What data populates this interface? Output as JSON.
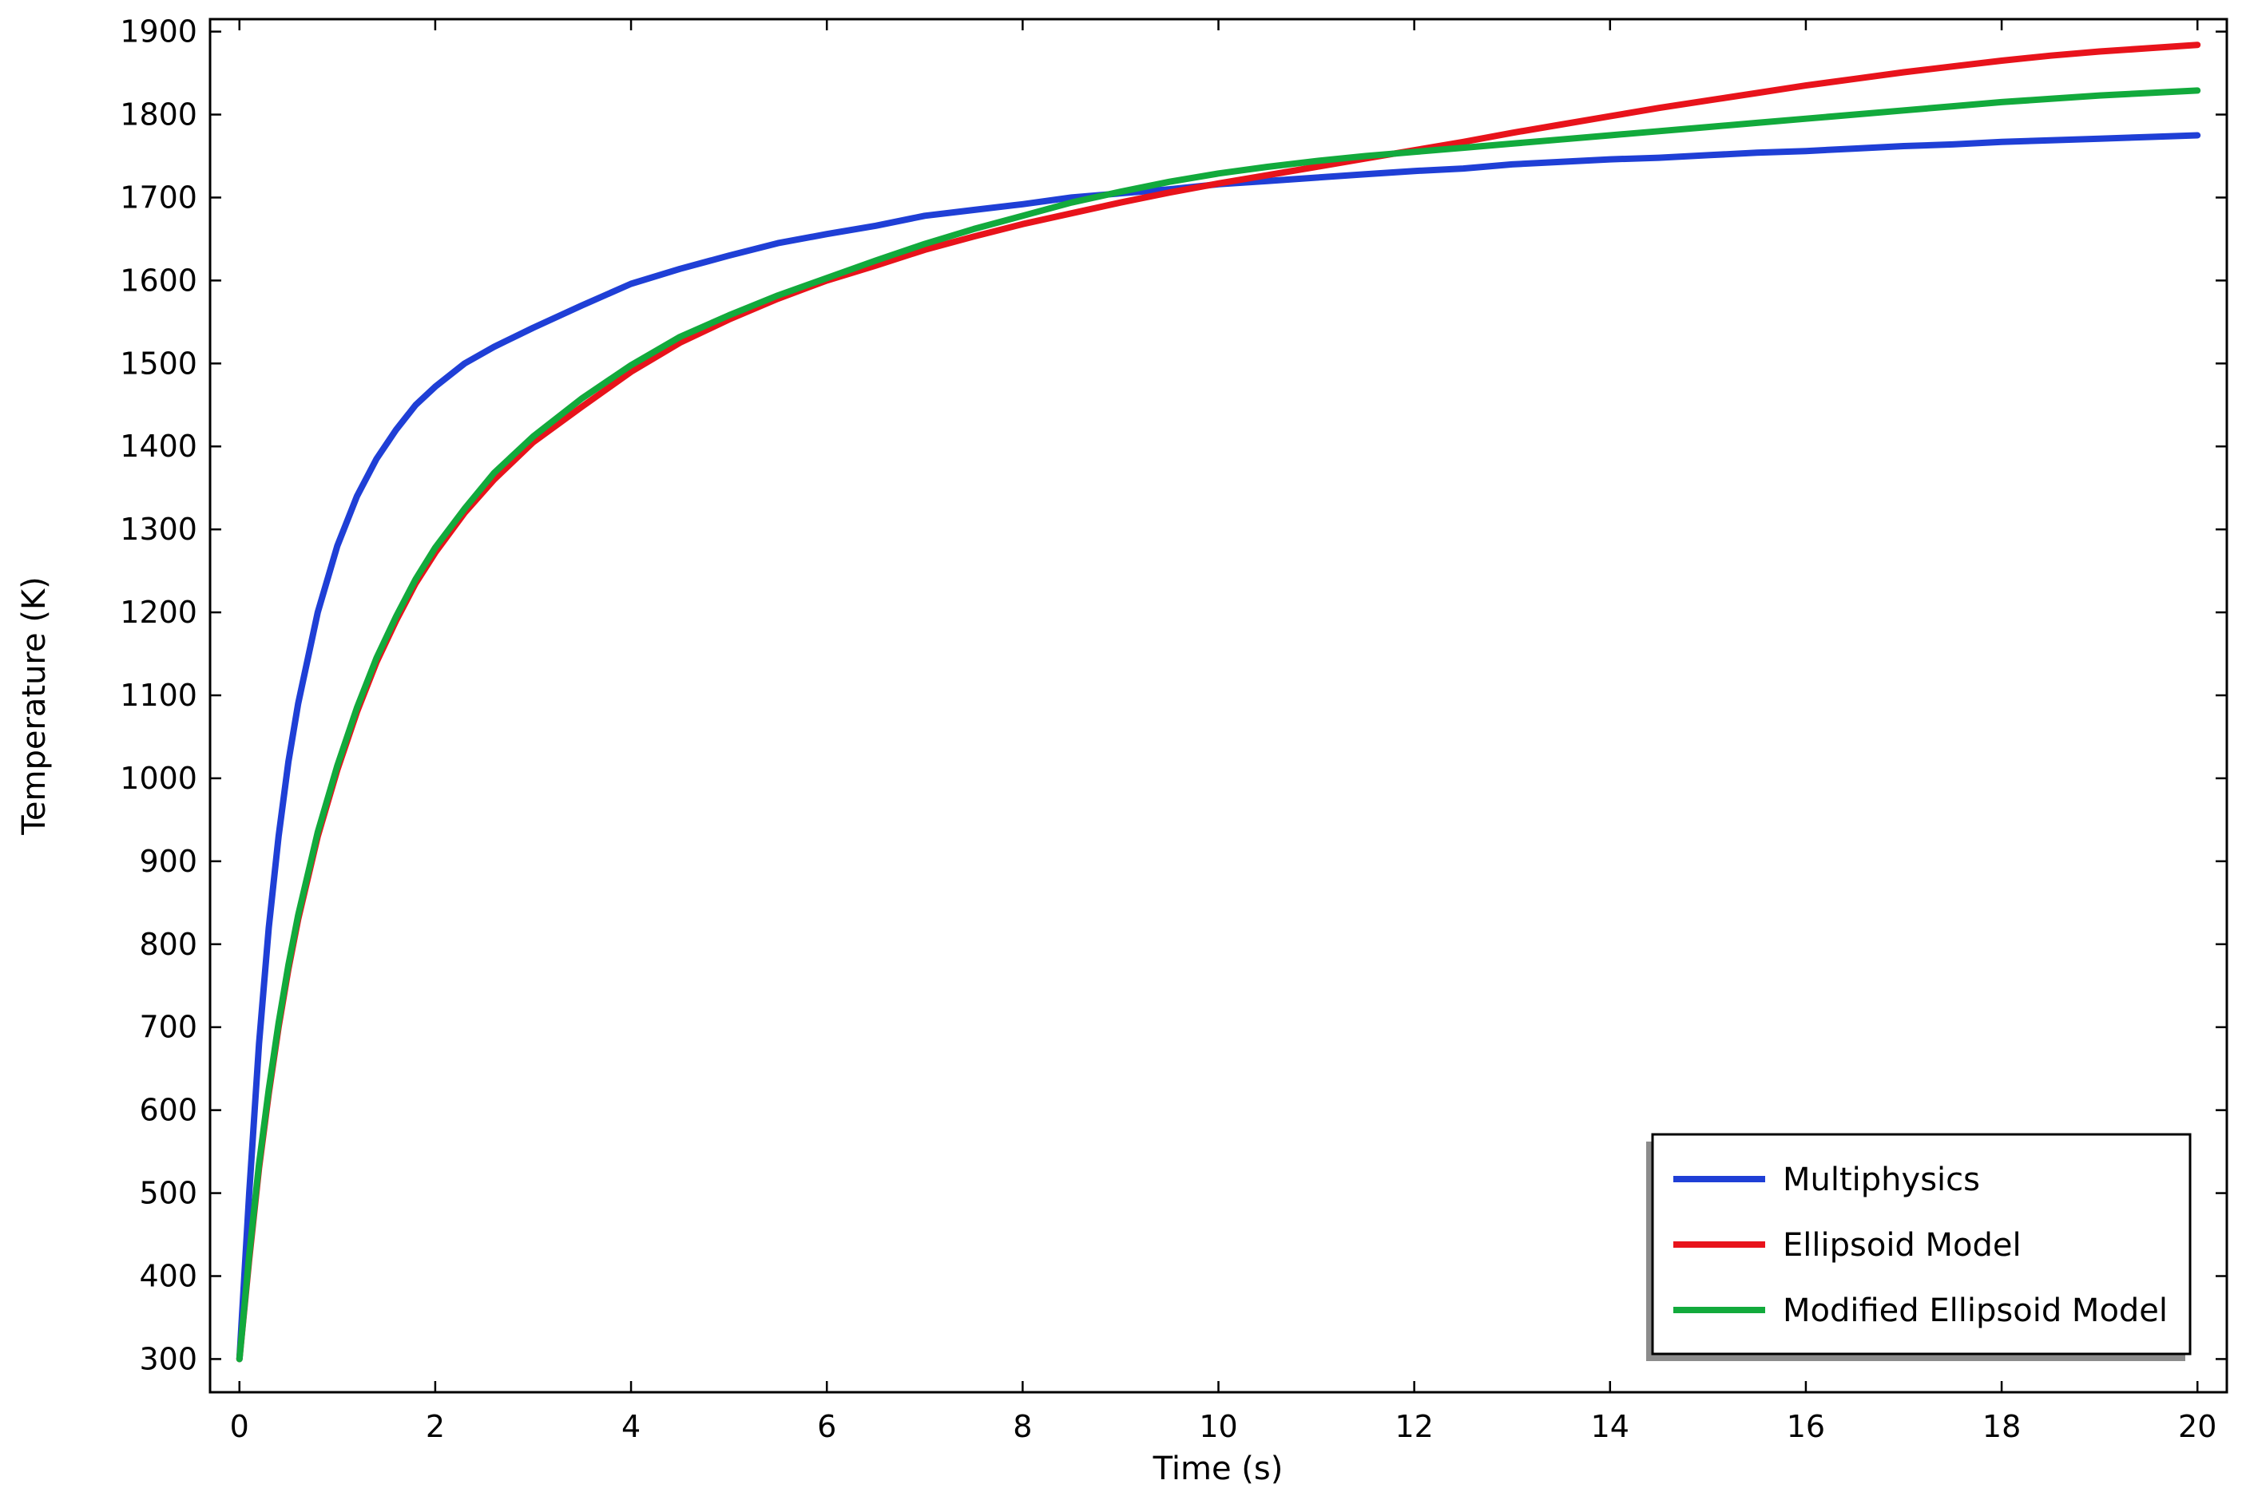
{
  "chart_data": {
    "type": "line",
    "title": "",
    "xlabel": "Time (s)",
    "ylabel": "Temperature (K)",
    "xlim": [
      -0.3,
      20.3
    ],
    "ylim": [
      260,
      1915
    ],
    "xticks": [
      0,
      2,
      4,
      6,
      8,
      10,
      12,
      14,
      16,
      18,
      20
    ],
    "yticks": [
      300,
      400,
      500,
      600,
      700,
      800,
      900,
      1000,
      1100,
      1200,
      1300,
      1400,
      1500,
      1600,
      1700,
      1800,
      1900
    ],
    "grid": false,
    "legend_position": "bottom-right",
    "series": [
      {
        "name": "Multiphysics",
        "color": "#1f3fd6",
        "x": [
          0,
          0.1,
          0.2,
          0.3,
          0.4,
          0.5,
          0.6,
          0.8,
          1.0,
          1.2,
          1.4,
          1.6,
          1.8,
          2.0,
          2.3,
          2.6,
          3.0,
          3.5,
          4.0,
          4.5,
          5.0,
          5.5,
          6.0,
          6.5,
          7.0,
          7.5,
          8.0,
          8.5,
          9.0,
          9.5,
          10.0,
          10.5,
          11.0,
          11.5,
          12.0,
          12.5,
          13.0,
          13.5,
          14.0,
          14.5,
          15.0,
          15.5,
          16.0,
          16.5,
          17.0,
          17.5,
          18.0,
          18.5,
          19.0,
          19.5,
          20.0
        ],
        "values": [
          300,
          500,
          680,
          820,
          930,
          1020,
          1090,
          1200,
          1280,
          1340,
          1385,
          1420,
          1450,
          1472,
          1500,
          1520,
          1543,
          1570,
          1596,
          1614,
          1630,
          1645,
          1656,
          1666,
          1678,
          1685,
          1692,
          1700,
          1705,
          1710,
          1716,
          1720,
          1724,
          1728,
          1732,
          1735,
          1740,
          1743,
          1746,
          1748,
          1751,
          1754,
          1756,
          1759,
          1762,
          1764,
          1767,
          1769,
          1771,
          1773,
          1775
        ]
      },
      {
        "name": "Ellipsoid Model",
        "color": "#e8131b",
        "x": [
          0,
          0.1,
          0.2,
          0.3,
          0.4,
          0.5,
          0.6,
          0.8,
          1.0,
          1.2,
          1.4,
          1.6,
          1.8,
          2.0,
          2.3,
          2.6,
          3.0,
          3.5,
          4.0,
          4.5,
          5.0,
          5.5,
          6.0,
          6.5,
          7.0,
          7.5,
          8.0,
          8.5,
          9.0,
          9.5,
          10.0,
          10.5,
          11.0,
          11.5,
          12.0,
          12.5,
          13.0,
          13.5,
          14.0,
          14.5,
          15.0,
          15.5,
          16.0,
          16.5,
          17.0,
          17.5,
          18.0,
          18.5,
          19.0,
          19.5,
          20.0
        ],
        "values": [
          300,
          420,
          530,
          620,
          700,
          770,
          830,
          930,
          1010,
          1080,
          1140,
          1190,
          1235,
          1272,
          1320,
          1360,
          1405,
          1448,
          1490,
          1525,
          1553,
          1578,
          1600,
          1618,
          1637,
          1653,
          1668,
          1681,
          1694,
          1706,
          1717,
          1727,
          1737,
          1747,
          1757,
          1767,
          1778,
          1788,
          1798,
          1808,
          1817,
          1826,
          1835,
          1843,
          1851,
          1858,
          1865,
          1871,
          1876,
          1880,
          1884
        ]
      },
      {
        "name": "Modified Ellipsoid Model",
        "color": "#12aa3c",
        "x": [
          0,
          0.1,
          0.2,
          0.3,
          0.4,
          0.5,
          0.6,
          0.8,
          1.0,
          1.2,
          1.4,
          1.6,
          1.8,
          2.0,
          2.3,
          2.6,
          3.0,
          3.5,
          4.0,
          4.5,
          5.0,
          5.5,
          6.0,
          6.5,
          7.0,
          7.5,
          8.0,
          8.5,
          9.0,
          9.5,
          10.0,
          10.5,
          11.0,
          11.5,
          12.0,
          12.5,
          13.0,
          13.5,
          14.0,
          14.5,
          15.0,
          15.5,
          16.0,
          16.5,
          17.0,
          17.5,
          18.0,
          18.5,
          19.0,
          19.5,
          20.0
        ],
        "values": [
          300,
          425,
          535,
          625,
          705,
          775,
          835,
          935,
          1015,
          1085,
          1145,
          1195,
          1240,
          1278,
          1325,
          1368,
          1412,
          1458,
          1498,
          1532,
          1558,
          1582,
          1603,
          1624,
          1644,
          1662,
          1678,
          1694,
          1707,
          1719,
          1729,
          1737,
          1744,
          1750,
          1755,
          1760,
          1765,
          1770,
          1775,
          1780,
          1785,
          1790,
          1795,
          1800,
          1805,
          1810,
          1815,
          1819,
          1823,
          1826,
          1829
        ]
      }
    ]
  }
}
